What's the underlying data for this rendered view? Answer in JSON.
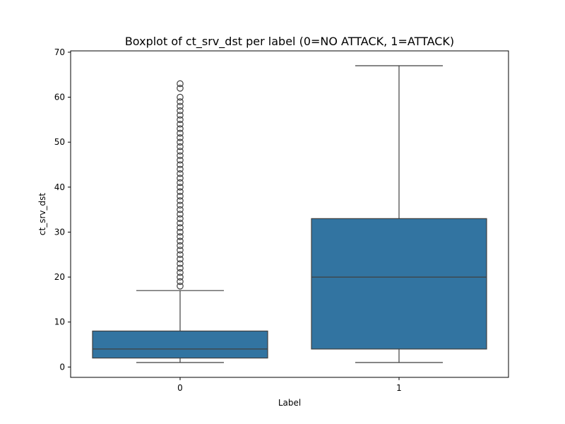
{
  "chart_data": {
    "type": "boxplot",
    "title": "Boxplot of ct_srv_dst per label (0=NO ATTACK, 1=ATTACK)",
    "xlabel": "Label",
    "ylabel": "ct_srv_dst",
    "categories": [
      "0",
      "1"
    ],
    "ylim": [
      -2.3,
      70.3
    ],
    "yticks": [
      0,
      10,
      20,
      30,
      40,
      50,
      60,
      70
    ],
    "grid": false,
    "box_color": "#3274a1",
    "line_color": "#3f3f3f",
    "boxes": [
      {
        "label": "0",
        "whisker_low": 1,
        "q1": 2,
        "median": 4,
        "q3": 8,
        "whisker_high": 17,
        "outliers": [
          18,
          19,
          20,
          21,
          22,
          23,
          24,
          25,
          26,
          27,
          28,
          29,
          30,
          31,
          32,
          33,
          34,
          35,
          36,
          37,
          38,
          39,
          40,
          41,
          42,
          43,
          44,
          45,
          46,
          47,
          48,
          49,
          50,
          51,
          52,
          53,
          54,
          55,
          56,
          57,
          58,
          59,
          60,
          62,
          63
        ]
      },
      {
        "label": "1",
        "whisker_low": 1,
        "q1": 4,
        "median": 20,
        "q3": 33,
        "whisker_high": 67,
        "outliers": []
      }
    ]
  }
}
